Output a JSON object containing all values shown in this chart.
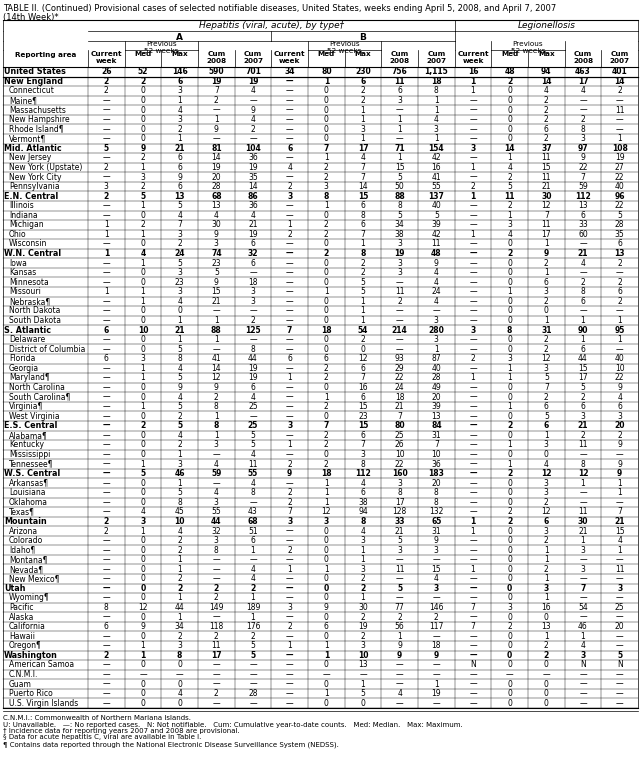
{
  "title_line1": "TABLE II. (Continued) Provisional cases of selected notifiable diseases, United States, weeks ending April 5, 2008, and April 7, 2007",
  "title_line2": "(14th Week)*",
  "rows": [
    [
      "United States",
      "26",
      "52",
      "146",
      "590",
      "701",
      "34",
      "80",
      "230",
      "756",
      "1,115",
      "16",
      "48",
      "94",
      "463",
      "401"
    ],
    [
      "New England",
      "2",
      "2",
      "6",
      "19",
      "19",
      "—",
      "1",
      "6",
      "11",
      "18",
      "1",
      "2",
      "14",
      "17",
      "14"
    ],
    [
      "Connecticut",
      "2",
      "0",
      "3",
      "7",
      "4",
      "—",
      "0",
      "2",
      "6",
      "8",
      "1",
      "0",
      "4",
      "4",
      "2"
    ],
    [
      "Maine¶",
      "—",
      "0",
      "1",
      "2",
      "—",
      "—",
      "0",
      "2",
      "3",
      "1",
      "—",
      "0",
      "2",
      "—",
      "—"
    ],
    [
      "Massachusetts",
      "—",
      "0",
      "4",
      "—",
      "9",
      "—",
      "0",
      "1",
      "—",
      "1",
      "—",
      "0",
      "2",
      "—",
      "11"
    ],
    [
      "New Hampshire",
      "—",
      "0",
      "3",
      "1",
      "4",
      "—",
      "0",
      "1",
      "1",
      "4",
      "—",
      "0",
      "2",
      "2",
      "—"
    ],
    [
      "Rhode Island¶",
      "—",
      "0",
      "2",
      "9",
      "2",
      "—",
      "0",
      "3",
      "1",
      "3",
      "—",
      "0",
      "6",
      "8",
      "—"
    ],
    [
      "Vermont¶",
      "—",
      "0",
      "1",
      "—",
      "—",
      "—",
      "0",
      "1",
      "—",
      "1",
      "—",
      "0",
      "2",
      "3",
      "1"
    ],
    [
      "Mid. Atlantic",
      "5",
      "9",
      "21",
      "81",
      "104",
      "6",
      "7",
      "17",
      "71",
      "154",
      "3",
      "14",
      "37",
      "97",
      "108"
    ],
    [
      "New Jersey",
      "—",
      "2",
      "6",
      "14",
      "36",
      "—",
      "1",
      "4",
      "1",
      "42",
      "—",
      "1",
      "11",
      "9",
      "19"
    ],
    [
      "New York (Upstate)",
      "2",
      "1",
      "6",
      "19",
      "19",
      "4",
      "2",
      "7",
      "15",
      "16",
      "1",
      "4",
      "15",
      "22",
      "27"
    ],
    [
      "New York City",
      "—",
      "3",
      "9",
      "20",
      "35",
      "—",
      "2",
      "7",
      "5",
      "41",
      "—",
      "2",
      "11",
      "7",
      "22"
    ],
    [
      "Pennsylvania",
      "3",
      "2",
      "6",
      "28",
      "14",
      "2",
      "3",
      "14",
      "50",
      "55",
      "2",
      "5",
      "21",
      "59",
      "40"
    ],
    [
      "E.N. Central",
      "2",
      "5",
      "13",
      "68",
      "86",
      "3",
      "8",
      "15",
      "88",
      "137",
      "1",
      "11",
      "30",
      "112",
      "96"
    ],
    [
      "Illinois",
      "—",
      "1",
      "5",
      "13",
      "36",
      "—",
      "1",
      "6",
      "8",
      "40",
      "—",
      "2",
      "12",
      "13",
      "22"
    ],
    [
      "Indiana",
      "—",
      "0",
      "4",
      "4",
      "4",
      "—",
      "0",
      "8",
      "5",
      "5",
      "—",
      "1",
      "7",
      "6",
      "5"
    ],
    [
      "Michigan",
      "1",
      "2",
      "7",
      "30",
      "21",
      "1",
      "2",
      "6",
      "34",
      "39",
      "—",
      "3",
      "11",
      "33",
      "28"
    ],
    [
      "Ohio",
      "1",
      "1",
      "3",
      "9",
      "19",
      "2",
      "2",
      "7",
      "38",
      "42",
      "1",
      "4",
      "17",
      "60",
      "35"
    ],
    [
      "Wisconsin",
      "—",
      "0",
      "2",
      "3",
      "6",
      "—",
      "0",
      "1",
      "3",
      "11",
      "—",
      "0",
      "1",
      "—",
      "6"
    ],
    [
      "W.N. Central",
      "1",
      "4",
      "24",
      "74",
      "32",
      "—",
      "2",
      "8",
      "19",
      "48",
      "—",
      "2",
      "9",
      "21",
      "13"
    ],
    [
      "Iowa",
      "—",
      "1",
      "5",
      "23",
      "6",
      "—",
      "0",
      "2",
      "3",
      "9",
      "—",
      "0",
      "2",
      "4",
      "2"
    ],
    [
      "Kansas",
      "—",
      "0",
      "3",
      "5",
      "—",
      "—",
      "0",
      "2",
      "3",
      "4",
      "—",
      "0",
      "1",
      "—",
      "—"
    ],
    [
      "Minnesota",
      "—",
      "0",
      "23",
      "9",
      "18",
      "—",
      "0",
      "5",
      "—",
      "4",
      "—",
      "0",
      "6",
      "2",
      "2"
    ],
    [
      "Missouri",
      "1",
      "1",
      "3",
      "15",
      "3",
      "—",
      "1",
      "5",
      "11",
      "24",
      "—",
      "1",
      "3",
      "8",
      "6"
    ],
    [
      "Nebraska¶",
      "—",
      "1",
      "4",
      "21",
      "3",
      "—",
      "0",
      "1",
      "2",
      "4",
      "—",
      "0",
      "2",
      "6",
      "2"
    ],
    [
      "North Dakota",
      "—",
      "0",
      "0",
      "—",
      "—",
      "—",
      "0",
      "1",
      "—",
      "—",
      "—",
      "0",
      "0",
      "—",
      "—"
    ],
    [
      "South Dakota",
      "—",
      "0",
      "1",
      "1",
      "2",
      "—",
      "0",
      "1",
      "—",
      "3",
      "—",
      "0",
      "1",
      "1",
      "1"
    ],
    [
      "S. Atlantic",
      "6",
      "10",
      "21",
      "88",
      "125",
      "7",
      "18",
      "54",
      "214",
      "280",
      "3",
      "8",
      "31",
      "90",
      "95"
    ],
    [
      "Delaware",
      "—",
      "0",
      "1",
      "1",
      "—",
      "—",
      "0",
      "2",
      "—",
      "3",
      "—",
      "0",
      "2",
      "1",
      "1"
    ],
    [
      "District of Columbia",
      "—",
      "0",
      "5",
      "—",
      "8",
      "—",
      "0",
      "0",
      "—",
      "1",
      "—",
      "0",
      "2",
      "6",
      "—"
    ],
    [
      "Florida",
      "6",
      "3",
      "8",
      "41",
      "44",
      "6",
      "6",
      "12",
      "93",
      "87",
      "2",
      "3",
      "12",
      "44",
      "40"
    ],
    [
      "Georgia",
      "—",
      "1",
      "4",
      "14",
      "19",
      "—",
      "2",
      "6",
      "29",
      "40",
      "—",
      "1",
      "3",
      "15",
      "10"
    ],
    [
      "Maryland¶",
      "—",
      "1",
      "5",
      "12",
      "19",
      "1",
      "2",
      "7",
      "22",
      "28",
      "1",
      "1",
      "5",
      "17",
      "22"
    ],
    [
      "North Carolina",
      "—",
      "0",
      "9",
      "9",
      "6",
      "—",
      "0",
      "16",
      "24",
      "49",
      "—",
      "0",
      "7",
      "5",
      "9"
    ],
    [
      "South Carolina¶",
      "—",
      "0",
      "4",
      "2",
      "4",
      "—",
      "1",
      "6",
      "18",
      "20",
      "—",
      "0",
      "2",
      "2",
      "4"
    ],
    [
      "Virginia¶",
      "—",
      "1",
      "5",
      "8",
      "25",
      "—",
      "2",
      "15",
      "21",
      "39",
      "—",
      "1",
      "6",
      "6",
      "6"
    ],
    [
      "West Virginia",
      "—",
      "0",
      "2",
      "1",
      "—",
      "—",
      "0",
      "23",
      "7",
      "13",
      "—",
      "0",
      "5",
      "3",
      "3"
    ],
    [
      "E.S. Central",
      "—",
      "2",
      "5",
      "8",
      "25",
      "3",
      "7",
      "15",
      "80",
      "84",
      "—",
      "2",
      "6",
      "21",
      "20"
    ],
    [
      "Alabama¶",
      "—",
      "0",
      "4",
      "1",
      "5",
      "—",
      "2",
      "6",
      "25",
      "31",
      "—",
      "0",
      "1",
      "2",
      "2"
    ],
    [
      "Kentucky",
      "—",
      "0",
      "2",
      "3",
      "5",
      "1",
      "2",
      "7",
      "26",
      "7",
      "—",
      "1",
      "3",
      "11",
      "9"
    ],
    [
      "Mississippi",
      "—",
      "0",
      "1",
      "—",
      "4",
      "—",
      "0",
      "3",
      "10",
      "10",
      "—",
      "0",
      "0",
      "—",
      "—"
    ],
    [
      "Tennessee¶",
      "—",
      "1",
      "3",
      "4",
      "11",
      "2",
      "2",
      "8",
      "22",
      "36",
      "—",
      "1",
      "4",
      "8",
      "9"
    ],
    [
      "W.S. Central",
      "—",
      "5",
      "46",
      "59",
      "55",
      "9",
      "18",
      "112",
      "160",
      "183",
      "—",
      "2",
      "12",
      "12",
      "9"
    ],
    [
      "Arkansas¶",
      "—",
      "0",
      "1",
      "—",
      "4",
      "—",
      "1",
      "4",
      "3",
      "20",
      "—",
      "0",
      "3",
      "1",
      "1"
    ],
    [
      "Louisiana",
      "—",
      "0",
      "5",
      "4",
      "8",
      "2",
      "1",
      "6",
      "8",
      "8",
      "—",
      "0",
      "3",
      "—",
      "1"
    ],
    [
      "Oklahoma",
      "—",
      "0",
      "8",
      "3",
      "—",
      "2",
      "1",
      "38",
      "17",
      "8",
      "—",
      "0",
      "2",
      "—",
      "—"
    ],
    [
      "Texas¶",
      "—",
      "4",
      "45",
      "55",
      "43",
      "7",
      "12",
      "94",
      "128",
      "132",
      "—",
      "2",
      "12",
      "11",
      "7"
    ],
    [
      "Mountain",
      "2",
      "3",
      "10",
      "44",
      "68",
      "3",
      "3",
      "8",
      "33",
      "65",
      "1",
      "2",
      "6",
      "30",
      "21"
    ],
    [
      "Arizona",
      "2",
      "1",
      "4",
      "32",
      "51",
      "—",
      "0",
      "4",
      "21",
      "31",
      "1",
      "0",
      "3",
      "21",
      "15"
    ],
    [
      "Colorado",
      "—",
      "0",
      "2",
      "3",
      "6",
      "—",
      "0",
      "3",
      "5",
      "9",
      "—",
      "0",
      "2",
      "1",
      "4"
    ],
    [
      "Idaho¶",
      "—",
      "0",
      "2",
      "8",
      "1",
      "2",
      "0",
      "1",
      "3",
      "3",
      "—",
      "0",
      "1",
      "3",
      "1"
    ],
    [
      "Montana¶",
      "—",
      "0",
      "1",
      "—",
      "—",
      "—",
      "0",
      "1",
      "—",
      "—",
      "—",
      "0",
      "1",
      "—",
      "—"
    ],
    [
      "Nevada¶",
      "—",
      "0",
      "1",
      "—",
      "4",
      "1",
      "1",
      "3",
      "11",
      "15",
      "1",
      "0",
      "2",
      "3",
      "11"
    ],
    [
      "New Mexico¶",
      "—",
      "0",
      "2",
      "—",
      "4",
      "—",
      "0",
      "2",
      "—",
      "4",
      "—",
      "0",
      "1",
      "—",
      "—"
    ],
    [
      "Utah",
      "—",
      "0",
      "2",
      "2",
      "2",
      "—",
      "0",
      "2",
      "5",
      "3",
      "—",
      "0",
      "3",
      "7",
      "3"
    ],
    [
      "Wyoming¶",
      "—",
      "0",
      "1",
      "2",
      "1",
      "—",
      "0",
      "1",
      "—",
      "—",
      "—",
      "0",
      "1",
      "—",
      "—"
    ],
    [
      "Pacific",
      "8",
      "12",
      "44",
      "149",
      "189",
      "3",
      "9",
      "30",
      "77",
      "146",
      "7",
      "3",
      "16",
      "54",
      "25"
    ],
    [
      "Alaska",
      "—",
      "0",
      "1",
      "—",
      "1",
      "—",
      "0",
      "2",
      "2",
      "2",
      "—",
      "0",
      "0",
      "—",
      "—"
    ],
    [
      "California",
      "6",
      "9",
      "34",
      "118",
      "176",
      "2",
      "6",
      "19",
      "56",
      "117",
      "7",
      "2",
      "13",
      "46",
      "20"
    ],
    [
      "Hawaii",
      "—",
      "0",
      "2",
      "2",
      "2",
      "—",
      "0",
      "2",
      "1",
      "—",
      "—",
      "0",
      "1",
      "1",
      "—"
    ],
    [
      "Oregon¶",
      "—",
      "1",
      "3",
      "11",
      "5",
      "1",
      "1",
      "3",
      "9",
      "18",
      "—",
      "0",
      "2",
      "4",
      "—"
    ],
    [
      "Washington",
      "2",
      "1",
      "8",
      "17",
      "5",
      "—",
      "1",
      "10",
      "9",
      "9",
      "—",
      "0",
      "2",
      "3",
      "5"
    ],
    [
      "American Samoa",
      "—",
      "0",
      "0",
      "—",
      "—",
      "—",
      "0",
      "13",
      "—",
      "—",
      "N",
      "0",
      "0",
      "N",
      "N"
    ],
    [
      "C.N.M.I.",
      "—",
      "—",
      "—",
      "—",
      "—",
      "—",
      "—",
      "—",
      "—",
      "—",
      "—",
      "—",
      "—",
      "—",
      "—"
    ],
    [
      "Guam",
      "—",
      "0",
      "0",
      "—",
      "—",
      "—",
      "0",
      "1",
      "—",
      "1",
      "—",
      "0",
      "0",
      "—",
      "—"
    ],
    [
      "Puerto Rico",
      "—",
      "0",
      "4",
      "2",
      "28",
      "—",
      "1",
      "5",
      "4",
      "19",
      "—",
      "0",
      "0",
      "—",
      "—"
    ],
    [
      "U.S. Virgin Islands",
      "—",
      "0",
      "0",
      "—",
      "—",
      "—",
      "0",
      "0",
      "—",
      "—",
      "—",
      "0",
      "0",
      "—",
      "—"
    ]
  ],
  "bold_rows": [
    0,
    1,
    8,
    13,
    19,
    27,
    37,
    42,
    47,
    54,
    61
  ],
  "footnotes": [
    "C.N.M.I.: Commonwealth of Northern Mariana Islands.",
    "U: Unavailable.   —: No reported cases.   N: Not notifiable.   Cum: Cumulative year-to-date counts.   Med: Median.   Max: Maximum.",
    "† Incidence data for reporting years 2007 and 2008 are provisional.",
    "§ Data for acute hepatitis C, viral are available in Table I.",
    "¶ Contains data reported through the National Electronic Disease Surveillance System (NEDSS)."
  ]
}
